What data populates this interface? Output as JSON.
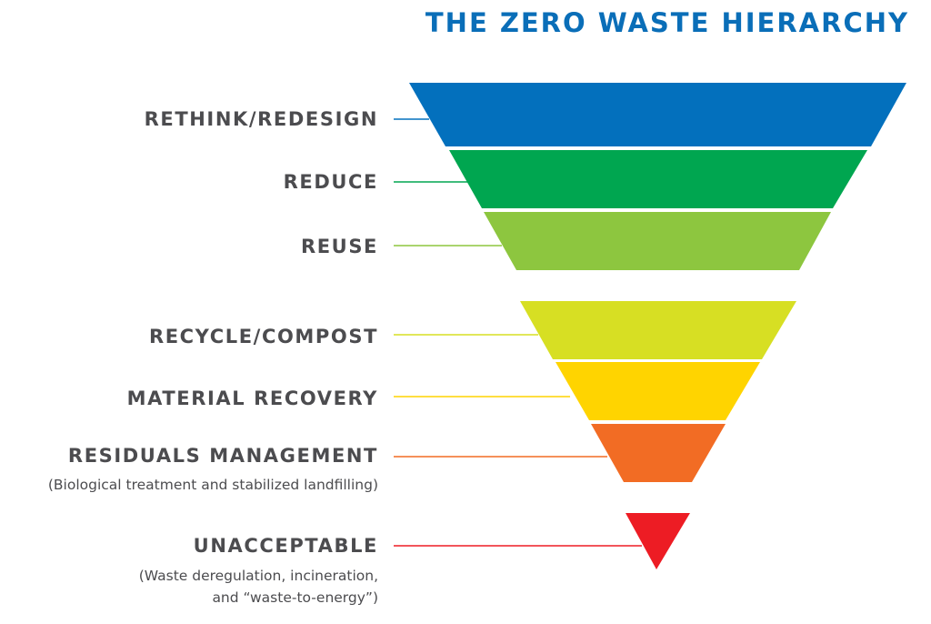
{
  "title": "THE ZERO WASTE HIERARCHY",
  "tiers": [
    {
      "name": "RETHINK/REDESIGN",
      "color": "#0370bd"
    },
    {
      "name": "REDUCE",
      "color": "#00a650"
    },
    {
      "name": "REUSE",
      "color": "#8dc63f"
    },
    {
      "name": "RECYCLE/COMPOST",
      "color": "#d7df23"
    },
    {
      "name": "MATERIAL RECOVERY",
      "color": "#ffd400"
    },
    {
      "name": "RESIDUALS MANAGEMENT",
      "note": "(Biological treatment and stabilized landfilling)",
      "color": "#f26c24"
    },
    {
      "name": "UNACCEPTABLE",
      "note_lines": [
        "(Waste deregulation, incineration,",
        "and “waste-to-energy”)"
      ],
      "color": "#ed1c24"
    }
  ]
}
